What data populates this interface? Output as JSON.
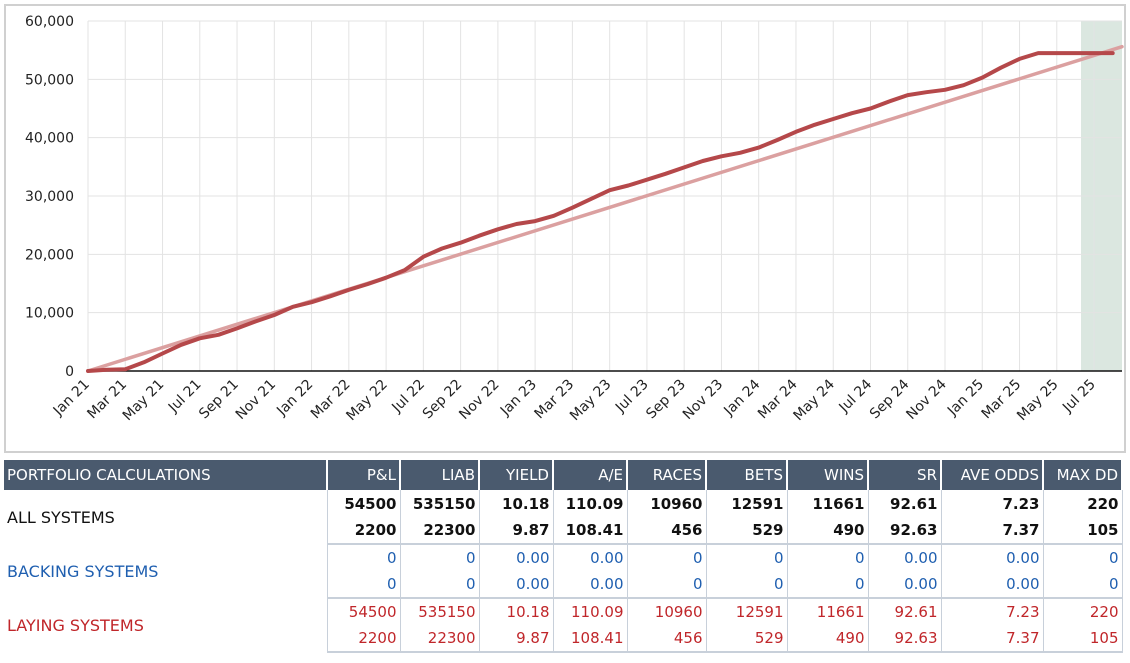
{
  "chart_data": {
    "type": "line",
    "x_tick_labels": [
      "Jan 21",
      "Mar 21",
      "May 21",
      "Jul 21",
      "Sep 21",
      "Nov 21",
      "Jan 22",
      "Mar 22",
      "May 22",
      "Jul 22",
      "Sep 22",
      "Nov 22",
      "Jan 23",
      "Mar 23",
      "May 23",
      "Jul 23",
      "Sep 23",
      "Nov 23",
      "Jan 24",
      "Mar 24",
      "May 24",
      "Jul 24",
      "Sep 24",
      "Nov 24",
      "Jan 25",
      "Mar 25",
      "May 25",
      "Jul 25"
    ],
    "y_tick_labels": [
      "0",
      "10,000",
      "20,000",
      "30,000",
      "40,000",
      "50,000",
      "60,000"
    ],
    "ylim": [
      0,
      60000
    ],
    "xlim": [
      0,
      55.5
    ],
    "grid": true,
    "series": [
      {
        "kind": "cumulative_pnl",
        "color": "#b5484a",
        "x": [
          0,
          1,
          2,
          3,
          4,
          5,
          6,
          7,
          8,
          9,
          10,
          11,
          12,
          13,
          14,
          15,
          16,
          17,
          18,
          19,
          20,
          21,
          22,
          23,
          24,
          25,
          26,
          27,
          28,
          29,
          30,
          31,
          32,
          33,
          34,
          35,
          36,
          37,
          38,
          39,
          40,
          41,
          42,
          43,
          44,
          45,
          46,
          47,
          48,
          49,
          50,
          51,
          52,
          53,
          54,
          55
        ],
        "values": [
          0,
          200,
          300,
          1500,
          3000,
          4500,
          5600,
          6200,
          7300,
          8500,
          9600,
          11000,
          11800,
          12800,
          13900,
          14900,
          16000,
          17300,
          19600,
          21000,
          22000,
          23200,
          24300,
          25200,
          25700,
          26600,
          28000,
          29500,
          31000,
          31800,
          32800,
          33800,
          34900,
          36000,
          36800,
          37400,
          38300,
          39600,
          41000,
          42200,
          43200,
          44200,
          45000,
          46200,
          47300,
          47800,
          48200,
          49000,
          50300,
          52000,
          53500,
          54500,
          54500,
          54500,
          54500,
          54500
        ]
      },
      {
        "kind": "trend",
        "color": "#dba0a0",
        "x": [
          0,
          55.5
        ],
        "values": [
          0,
          55600
        ]
      }
    ],
    "highlight_region": {
      "x_range": [
        53.3,
        55.5
      ],
      "color": "#dbe7e0"
    }
  },
  "table": {
    "headers": [
      "PORTFOLIO CALCULATIONS",
      "P&L",
      "LIAB",
      "YIELD",
      "A/E",
      "RACES",
      "BETS",
      "WINS",
      "SR",
      "AVE ODDS",
      "MAX DD"
    ],
    "groups": [
      {
        "label": "ALL SYSTEMS",
        "rows": [
          [
            "54500",
            "535150",
            "10.18",
            "110.09",
            "10960",
            "12591",
            "11661",
            "92.61",
            "7.23",
            "220"
          ],
          [
            "2200",
            "22300",
            "9.87",
            "108.41",
            "456",
            "529",
            "490",
            "92.63",
            "7.37",
            "105"
          ]
        ]
      },
      {
        "label": "BACKING SYSTEMS",
        "rows": [
          [
            "0",
            "0",
            "0.00",
            "0.00",
            "0",
            "0",
            "0",
            "0.00",
            "0.00",
            "0"
          ],
          [
            "0",
            "0",
            "0.00",
            "0.00",
            "0",
            "0",
            "0",
            "0.00",
            "0.00",
            "0"
          ]
        ]
      },
      {
        "label": "LAYING SYSTEMS",
        "rows": [
          [
            "54500",
            "535150",
            "10.18",
            "110.09",
            "10960",
            "12591",
            "11661",
            "92.61",
            "7.23",
            "220"
          ],
          [
            "2200",
            "22300",
            "9.87",
            "108.41",
            "456",
            "529",
            "490",
            "92.63",
            "7.37",
            "105"
          ]
        ]
      }
    ]
  }
}
